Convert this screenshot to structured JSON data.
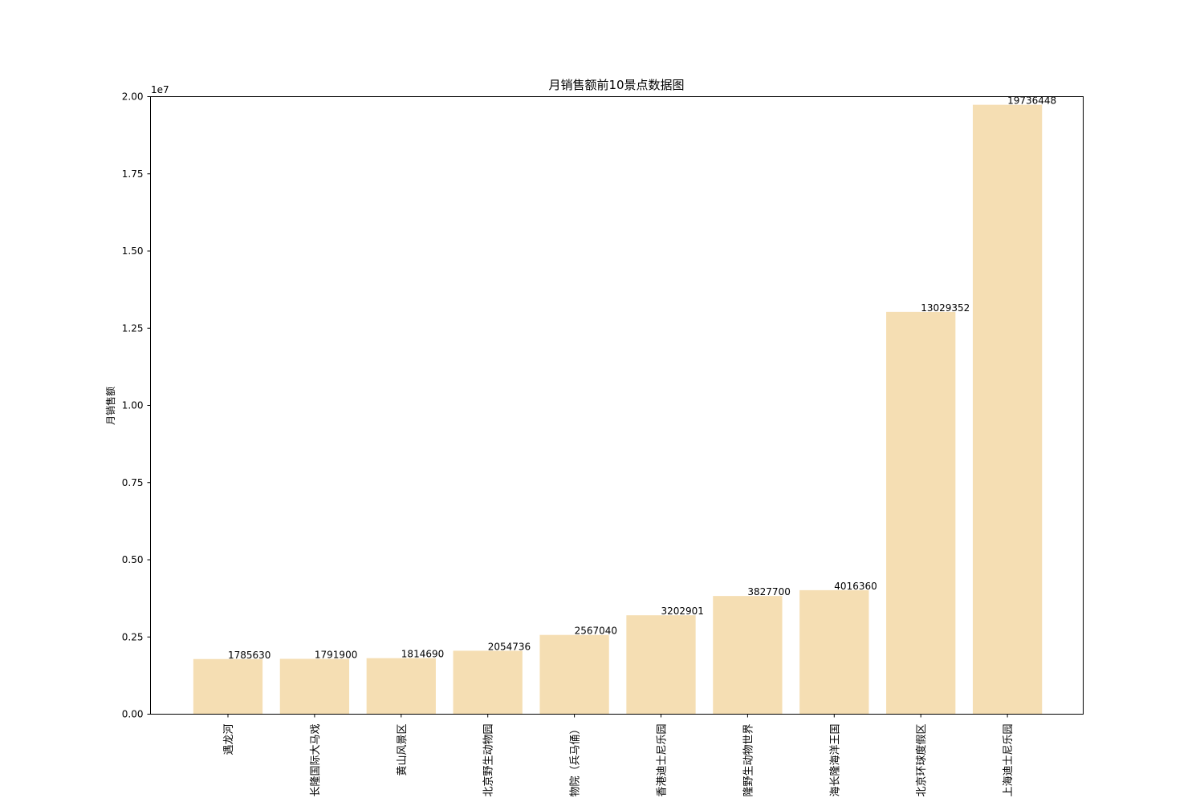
{
  "chart_data": {
    "type": "bar",
    "title": "月销售额前10景点数据图",
    "xlabel": "",
    "ylabel": "月销售额",
    "y_offset_label": "1e7",
    "ylim": [
      0,
      20000000
    ],
    "yticks": [
      0,
      2500000,
      5000000,
      7500000,
      10000000,
      12500000,
      15000000,
      17500000,
      20000000
    ],
    "ytick_labels": [
      "0.00",
      "0.25",
      "0.50",
      "0.75",
      "1.00",
      "1.25",
      "1.50",
      "1.75",
      "2.00"
    ],
    "categories": [
      "遇龙河",
      "长隆国际大马戏",
      "黄山风景区",
      "北京野生动物园",
      "物院（兵马俑）",
      "香港迪士尼乐园",
      "隆野生动物世界",
      "海长隆海洋王国",
      "北京环球度假区",
      "上海迪士尼乐园"
    ],
    "values": [
      1785630,
      1791900,
      1814690,
      2054736,
      2567040,
      3202901,
      3827700,
      4016360,
      13029352,
      19736448
    ],
    "data_labels": [
      "1785630",
      "1791900",
      "1814690",
      "2054736",
      "2567040",
      "3202901",
      "3827700",
      "4016360",
      "13029352",
      "19736448"
    ],
    "bar_color": "#f5deb3",
    "grid": false,
    "legend": "none"
  }
}
